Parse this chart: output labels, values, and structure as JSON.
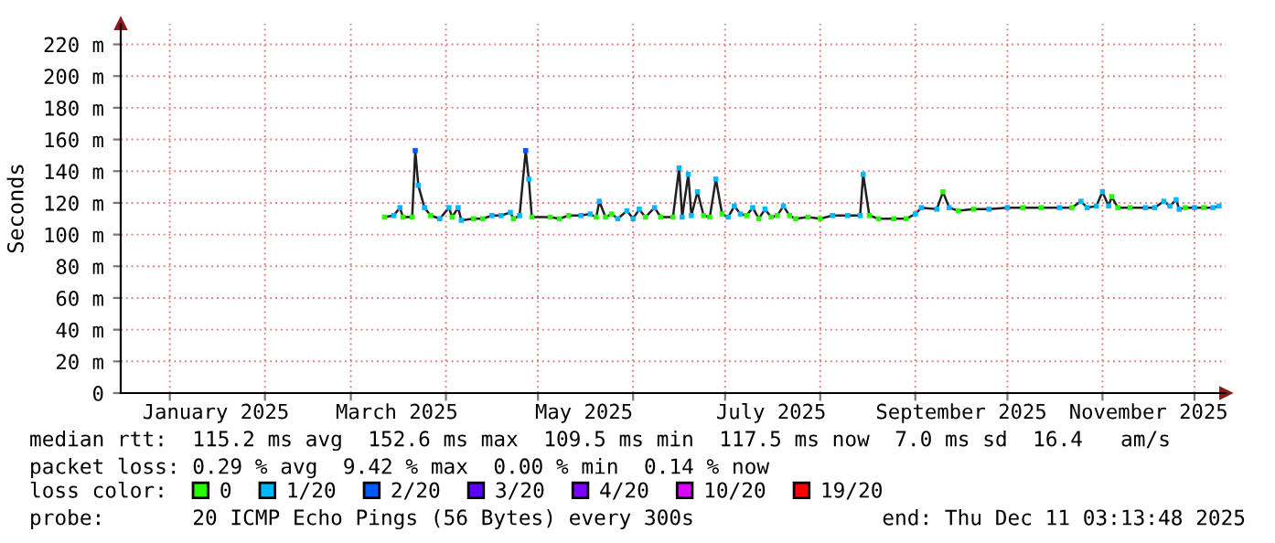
{
  "chart_data": {
    "type": "line",
    "ylabel": "Seconds",
    "legend_title": "loss color:",
    "xlim": [
      "2024-12-16",
      "2025-12-11T03:13"
    ],
    "ylim": [
      0,
      233
    ],
    "yticks": [
      0,
      {
        "value": 20,
        "label": "20 m"
      },
      {
        "value": 40,
        "label": "40 m"
      },
      {
        "value": 60,
        "label": "60 m"
      },
      {
        "value": 80,
        "label": "80 m"
      },
      {
        "value": 100,
        "label": "100 m"
      },
      {
        "value": 120,
        "label": "120 m"
      },
      {
        "value": 140,
        "label": "140 m"
      },
      {
        "value": 160,
        "label": "160 m"
      },
      {
        "value": 180,
        "label": "180 m"
      },
      {
        "value": 200,
        "label": "200 m"
      },
      {
        "value": 220,
        "label": "220 m"
      }
    ],
    "xticks": [
      {
        "value": "2025-01-01",
        "label": null
      },
      {
        "value": "2025-01-16",
        "label": "January 2025"
      },
      {
        "value": "2025-02-01",
        "label": null
      },
      {
        "value": "2025-03-01",
        "label": null
      },
      {
        "value": "2025-03-16",
        "label": "March 2025"
      },
      {
        "value": "2025-04-01",
        "label": null
      },
      {
        "value": "2025-05-01",
        "label": null
      },
      {
        "value": "2025-05-16",
        "label": "May 2025"
      },
      {
        "value": "2025-06-01",
        "label": null
      },
      {
        "value": "2025-07-01",
        "label": null
      },
      {
        "value": "2025-07-16",
        "label": "July 2025"
      },
      {
        "value": "2025-08-01",
        "label": null
      },
      {
        "value": "2025-09-01",
        "label": null
      },
      {
        "value": "2025-09-16",
        "label": "September 2025"
      },
      {
        "value": "2025-10-01",
        "label": null
      },
      {
        "value": "2025-11-01",
        "label": null
      },
      {
        "value": "2025-11-16",
        "label": "November 2025"
      },
      {
        "value": "2025-12-01",
        "label": null
      }
    ],
    "grid": true,
    "legend": "bottom",
    "marker": "square",
    "annotations": [
      "median rtt:  115.2 ms avg  152.6 ms max  109.5 ms min  117.5 ms now  7.0 ms sd  16.4   am/s",
      "packet loss: 0.29 % avg  9.42 % max  0.00 % min  0.14 % now",
      "probe:       20 ICMP Echo Pings (56 Bytes) every 300s",
      "end: Thu Dec 11 03:13:48 2025"
    ],
    "series": [
      {
        "color": "#202020",
        "marker": "none",
        "x": [
          "2025-03-12",
          "2025-03-15",
          "2025-03-17",
          "2025-03-18",
          "2025-03-21",
          "2025-03-22",
          "2025-03-23",
          "2025-03-25",
          "2025-03-27",
          "2025-03-30",
          "2025-04-02",
          "2025-04-03",
          "2025-04-05",
          "2025-04-06",
          "2025-04-10",
          "2025-04-13",
          "2025-04-16",
          "2025-04-19",
          "2025-04-22",
          "2025-04-23",
          "2025-04-25",
          "2025-04-27",
          "2025-04-28",
          "2025-04-29",
          "2025-05-05",
          "2025-05-08",
          "2025-05-11",
          "2025-05-15",
          "2025-05-18",
          "2025-05-20",
          "2025-05-21",
          "2025-05-23",
          "2025-05-25",
          "2025-05-27",
          "2025-05-30",
          "2025-06-01",
          "2025-06-03",
          "2025-06-05",
          "2025-06-08",
          "2025-06-10",
          "2025-06-14",
          "2025-06-16",
          "2025-06-17",
          "2025-06-19",
          "2025-06-20",
          "2025-06-22",
          "2025-06-24",
          "2025-06-26",
          "2025-06-28",
          "2025-06-30",
          "2025-07-02",
          "2025-07-04",
          "2025-07-06",
          "2025-07-08",
          "2025-07-10",
          "2025-07-12",
          "2025-07-14",
          "2025-07-16",
          "2025-07-18",
          "2025-07-20",
          "2025-07-22",
          "2025-07-24",
          "2025-07-28",
          "2025-08-01",
          "2025-08-05",
          "2025-08-10",
          "2025-08-14",
          "2025-08-15",
          "2025-08-17",
          "2025-08-20",
          "2025-08-25",
          "2025-08-29",
          "2025-09-01",
          "2025-09-03",
          "2025-09-08",
          "2025-09-10",
          "2025-09-12",
          "2025-09-15",
          "2025-09-20",
          "2025-09-25",
          "2025-10-01",
          "2025-10-06",
          "2025-10-12",
          "2025-10-18",
          "2025-10-22",
          "2025-10-25",
          "2025-10-27",
          "2025-10-30",
          "2025-11-01",
          "2025-11-03",
          "2025-11-04",
          "2025-11-06",
          "2025-11-10",
          "2025-11-15",
          "2025-11-18",
          "2025-11-21",
          "2025-11-23",
          "2025-11-25",
          "2025-11-26",
          "2025-11-28",
          "2025-12-01",
          "2025-12-04",
          "2025-12-07",
          "2025-12-09"
        ],
        "values": [
          111,
          112,
          117,
          111,
          111,
          153,
          131,
          117,
          112,
          110,
          117,
          111,
          117,
          109,
          110,
          110,
          112,
          112,
          114,
          110,
          112,
          153,
          135,
          111,
          111,
          110,
          112,
          112,
          113,
          111,
          121,
          111,
          113,
          110,
          115,
          110,
          116,
          111,
          117,
          111,
          111,
          142,
          111,
          138,
          112,
          127,
          112,
          111,
          135,
          113,
          111,
          118,
          113,
          112,
          117,
          110,
          116,
          111,
          112,
          118,
          112,
          110,
          111,
          110,
          112,
          112,
          112,
          138,
          112,
          110,
          110,
          110,
          113,
          117,
          116,
          127,
          117,
          115,
          116,
          116,
          117,
          117,
          117,
          117,
          117,
          121,
          117,
          118,
          127,
          118,
          124,
          117,
          117,
          117,
          117,
          121,
          118,
          122,
          116,
          117,
          117,
          117,
          117,
          118
        ]
      },
      {
        "name": "0",
        "type": "scatter",
        "color": "#26ff00",
        "x": [
          "2025-03-12",
          "2025-03-18",
          "2025-03-21",
          "2025-03-27",
          "2025-04-03",
          "2025-04-10",
          "2025-04-13",
          "2025-04-23",
          "2025-04-29",
          "2025-05-05",
          "2025-05-08",
          "2025-05-11",
          "2025-05-20",
          "2025-05-23",
          "2025-05-25",
          "2025-06-05",
          "2025-06-10",
          "2025-06-14",
          "2025-06-24",
          "2025-06-26",
          "2025-06-30",
          "2025-07-08",
          "2025-07-12",
          "2025-07-16",
          "2025-07-18",
          "2025-07-22",
          "2025-07-24",
          "2025-07-28",
          "2025-08-01",
          "2025-08-17",
          "2025-08-20",
          "2025-08-25",
          "2025-08-29",
          "2025-09-10",
          "2025-09-15",
          "2025-09-20",
          "2025-10-06",
          "2025-10-12",
          "2025-10-22",
          "2025-11-04",
          "2025-11-06",
          "2025-11-10",
          "2025-11-28",
          "2025-12-04"
        ],
        "values": [
          111,
          111,
          111,
          112,
          111,
          110,
          110,
          110,
          111,
          111,
          110,
          112,
          111,
          111,
          113,
          111,
          111,
          111,
          112,
          111,
          113,
          112,
          110,
          111,
          112,
          112,
          110,
          111,
          110,
          112,
          110,
          110,
          110,
          127,
          115,
          116,
          117,
          117,
          117,
          124,
          117,
          117,
          117,
          117
        ]
      },
      {
        "name": "1/20",
        "type": "scatter",
        "color": "#00b8ff",
        "x": [
          "2025-03-15",
          "2025-03-17",
          "2025-03-23",
          "2025-03-25",
          "2025-03-30",
          "2025-04-02",
          "2025-04-05",
          "2025-04-06",
          "2025-04-16",
          "2025-04-19",
          "2025-04-22",
          "2025-04-25",
          "2025-04-28",
          "2025-05-15",
          "2025-05-18",
          "2025-05-21",
          "2025-05-27",
          "2025-05-30",
          "2025-06-01",
          "2025-06-03",
          "2025-06-08",
          "2025-06-16",
          "2025-06-17",
          "2025-06-19",
          "2025-06-20",
          "2025-06-22",
          "2025-06-28",
          "2025-07-02",
          "2025-07-04",
          "2025-07-06",
          "2025-07-10",
          "2025-07-14",
          "2025-07-20",
          "2025-08-05",
          "2025-08-10",
          "2025-08-14",
          "2025-08-15",
          "2025-09-01",
          "2025-09-03",
          "2025-09-08",
          "2025-09-12",
          "2025-09-25",
          "2025-10-01",
          "2025-10-18",
          "2025-10-25",
          "2025-10-27",
          "2025-10-30",
          "2025-11-01",
          "2025-11-03",
          "2025-11-15",
          "2025-11-18",
          "2025-11-21",
          "2025-11-23",
          "2025-11-25",
          "2025-11-26",
          "2025-12-01",
          "2025-12-07",
          "2025-12-09"
        ],
        "values": [
          112,
          117,
          131,
          117,
          110,
          117,
          117,
          109,
          112,
          112,
          114,
          112,
          135,
          112,
          113,
          121,
          110,
          115,
          110,
          116,
          117,
          142,
          111,
          138,
          112,
          127,
          135,
          111,
          118,
          113,
          117,
          116,
          118,
          112,
          112,
          112,
          138,
          113,
          117,
          116,
          117,
          116,
          117,
          117,
          121,
          117,
          118,
          127,
          118,
          117,
          117,
          121,
          118,
          122,
          116,
          117,
          117,
          118
        ]
      },
      {
        "name": "2/20",
        "type": "scatter",
        "color": "#0059ff",
        "x": [
          "2025-03-22",
          "2025-04-27"
        ],
        "values": [
          153,
          153
        ]
      },
      {
        "name": "3/20",
        "type": "scatter",
        "color": "#5e00ff"
      },
      {
        "name": "4/20",
        "type": "scatter",
        "color": "#7e00ff"
      },
      {
        "name": "10/20",
        "type": "scatter",
        "color": "#dd00ff"
      },
      {
        "name": "19/20",
        "type": "scatter",
        "color": "#ff0000"
      }
    ]
  }
}
